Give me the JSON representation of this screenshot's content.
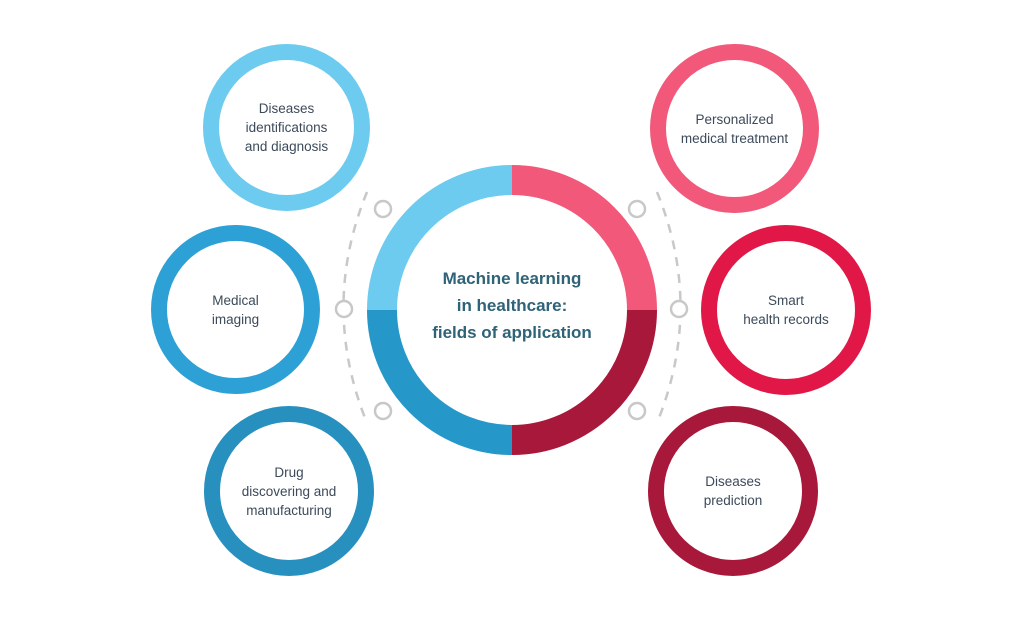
{
  "center": {
    "title": "Machine learning\nin healthcare:\nfields of application",
    "segment_colors": [
      "#6ccbee",
      "#f2587a",
      "#a8183a",
      "#2597c9"
    ]
  },
  "nodes": [
    {
      "id": "diseases-identification",
      "label": "Diseases\nidentifications\nand diagnosis",
      "color": "#6ccbee"
    },
    {
      "id": "medical-imaging",
      "label": "Medical\nimaging",
      "color": "#2da1d6"
    },
    {
      "id": "drug-discovering",
      "label": "Drug\ndiscovering and\nmanufacturing",
      "color": "#2790bf"
    },
    {
      "id": "personalized-treatment",
      "label": "Personalized\nmedical treatment",
      "color": "#f2587a"
    },
    {
      "id": "smart-health-records",
      "label": "Smart\nhealth records",
      "color": "#e11747"
    },
    {
      "id": "diseases-prediction",
      "label": "Diseases\nprediction",
      "color": "#a8183a"
    }
  ],
  "connector_color": "#c8c8c8"
}
